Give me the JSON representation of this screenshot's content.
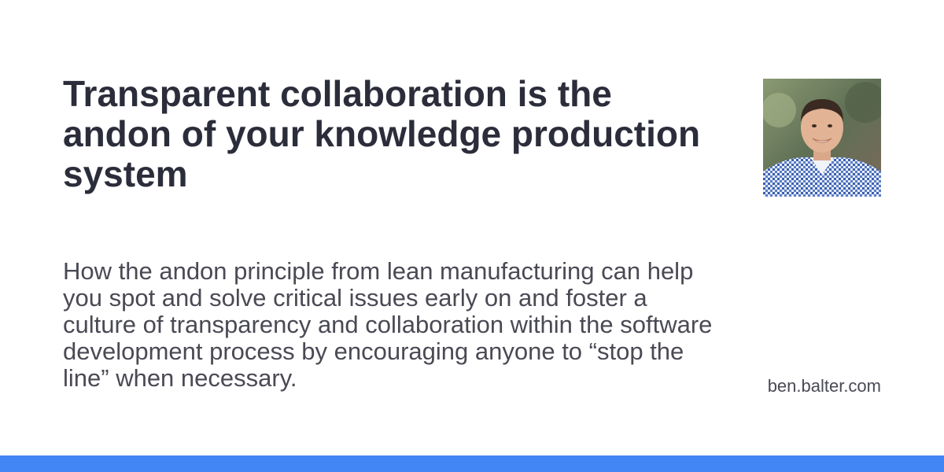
{
  "card": {
    "title": "Transparent collaboration is the andon of your knowledge production system",
    "description": "How the andon principle from lean manufacturing can help you spot and solve critical issues early on and foster a culture of transparency and collaboration within the software development process by encouraging anyone to “stop the line” when necessary.",
    "site": "ben.balter.com"
  },
  "colors": {
    "title": "#2b2d3a",
    "body_text": "#4a4a55",
    "accent_bar": "#4285f4",
    "background": "#ffffff"
  }
}
